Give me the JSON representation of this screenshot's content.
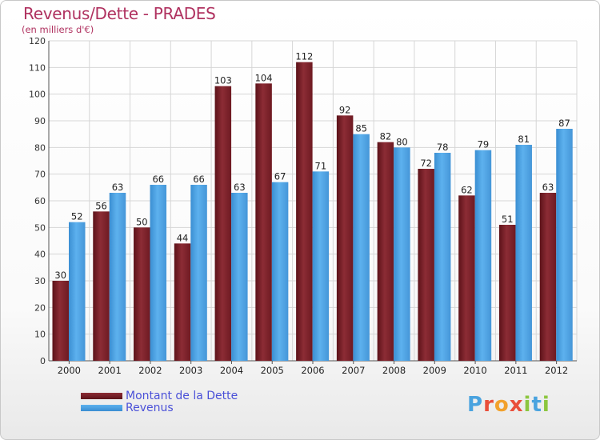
{
  "title": "Revenus/Dette - PRADES",
  "subtitle": "(en milliers d'€)",
  "colors": {
    "dette": "#7a1f28",
    "dette_light": "#8a2a33",
    "revenus": "#4a9fe0",
    "revenus_light": "#5aaeea",
    "title": "#b03260",
    "legend_text": "#4a50d8"
  },
  "legend": {
    "dette_label": "Montant de la Dette",
    "revenus_label": "Revenus"
  },
  "logo": {
    "text": "Proxiti"
  },
  "chart_data": {
    "type": "bar",
    "title": "Revenus/Dette - PRADES",
    "ylabel": "(en milliers d'€)",
    "xlabel": "",
    "ylim": [
      0,
      120
    ],
    "yticks": [
      0,
      10,
      20,
      30,
      40,
      50,
      60,
      70,
      80,
      90,
      100,
      110,
      120
    ],
    "grid": true,
    "legend_position": "bottom-left",
    "categories": [
      "2000",
      "2001",
      "2002",
      "2003",
      "2004",
      "2005",
      "2006",
      "2007",
      "2008",
      "2009",
      "2010",
      "2011",
      "2012"
    ],
    "series": [
      {
        "name": "Montant de la Dette",
        "values": [
          30,
          56,
          50,
          44,
          103,
          104,
          112,
          92,
          82,
          72,
          62,
          51,
          63
        ]
      },
      {
        "name": "Revenus",
        "values": [
          52,
          63,
          66,
          66,
          63,
          67,
          71,
          85,
          80,
          78,
          79,
          81,
          87
        ]
      }
    ]
  }
}
